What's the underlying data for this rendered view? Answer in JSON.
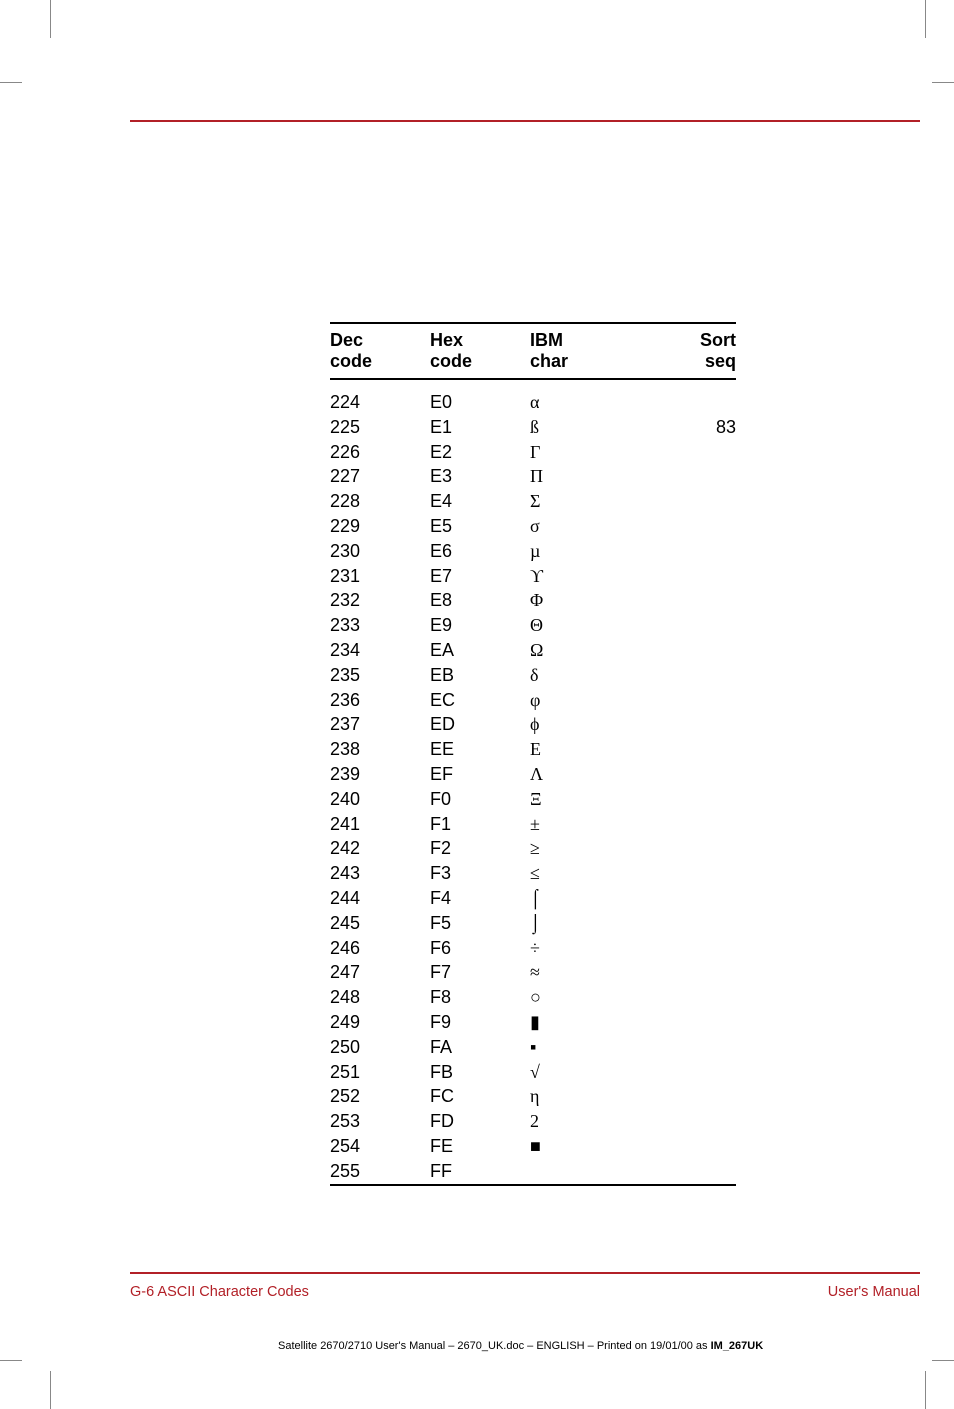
{
  "headers": {
    "dec1": "Dec",
    "dec2": "code",
    "hex1": "Hex",
    "hex2": "code",
    "ibm1": "IBM",
    "ibm2": "char",
    "sort1": "Sort",
    "sort2": "seq"
  },
  "rows": [
    {
      "dec": "224",
      "hex": "E0",
      "ibm": "α",
      "sort": ""
    },
    {
      "dec": "225",
      "hex": "E1",
      "ibm": "ß",
      "sort": "83"
    },
    {
      "dec": "226",
      "hex": "E2",
      "ibm": "Γ",
      "sort": ""
    },
    {
      "dec": "227",
      "hex": "E3",
      "ibm": "Π",
      "sort": ""
    },
    {
      "dec": "228",
      "hex": "E4",
      "ibm": "Σ",
      "sort": ""
    },
    {
      "dec": "229",
      "hex": "E5",
      "ibm": "σ",
      "sort": ""
    },
    {
      "dec": "230",
      "hex": "E6",
      "ibm": "µ",
      "sort": ""
    },
    {
      "dec": "231",
      "hex": "E7",
      "ibm": "ϒ",
      "sort": ""
    },
    {
      "dec": "232",
      "hex": "E8",
      "ibm": "Φ",
      "sort": ""
    },
    {
      "dec": "233",
      "hex": "E9",
      "ibm": "Θ",
      "sort": ""
    },
    {
      "dec": "234",
      "hex": "EA",
      "ibm": "Ω",
      "sort": ""
    },
    {
      "dec": "235",
      "hex": "EB",
      "ibm": "δ",
      "sort": ""
    },
    {
      "dec": "236",
      "hex": "EC",
      "ibm": "φ",
      "sort": ""
    },
    {
      "dec": "237",
      "hex": "ED",
      "ibm": "ϕ",
      "sort": ""
    },
    {
      "dec": "238",
      "hex": "EE",
      "ibm": "Ε",
      "sort": ""
    },
    {
      "dec": "239",
      "hex": "EF",
      "ibm": "Λ",
      "sort": ""
    },
    {
      "dec": "240",
      "hex": "F0",
      "ibm": "Ξ",
      "sort": ""
    },
    {
      "dec": "241",
      "hex": "F1",
      "ibm": "±",
      "sort": ""
    },
    {
      "dec": "242",
      "hex": "F2",
      "ibm": "≥",
      "sort": ""
    },
    {
      "dec": "243",
      "hex": "F3",
      "ibm": "≤",
      "sort": ""
    },
    {
      "dec": "244",
      "hex": "F4",
      "ibm": "⌠",
      "sort": ""
    },
    {
      "dec": "245",
      "hex": "F5",
      "ibm": "⌡",
      "sort": ""
    },
    {
      "dec": "246",
      "hex": "F6",
      "ibm": "÷",
      "sort": ""
    },
    {
      "dec": "247",
      "hex": "F7",
      "ibm": "≈",
      "sort": ""
    },
    {
      "dec": "248",
      "hex": "F8",
      "ibm": "○",
      "sort": ""
    },
    {
      "dec": "249",
      "hex": "F9",
      "ibm": "▮",
      "sort": ""
    },
    {
      "dec": "250",
      "hex": "FA",
      "ibm": "▪",
      "sort": ""
    },
    {
      "dec": "251",
      "hex": "FB",
      "ibm": "√",
      "sort": ""
    },
    {
      "dec": "252",
      "hex": "FC",
      "ibm": "η",
      "sort": ""
    },
    {
      "dec": "253",
      "hex": "FD",
      "ibm": "2",
      "sort": ""
    },
    {
      "dec": "254",
      "hex": "FE",
      "ibm": "■",
      "sort": ""
    },
    {
      "dec": "255",
      "hex": "FF",
      "ibm": "",
      "sort": ""
    }
  ],
  "footer": {
    "left": "G-6  ASCII Character Codes",
    "right": "User's Manual"
  },
  "bottomNote": {
    "text": "Satellite 2670/2710 User's Manual  – 2670_UK.doc – ENGLISH – Printed on 19/01/00 as ",
    "bold": "IM_267UK"
  },
  "colors": {
    "accent": "#b22027",
    "text": "#000000",
    "background": "#ffffff"
  }
}
